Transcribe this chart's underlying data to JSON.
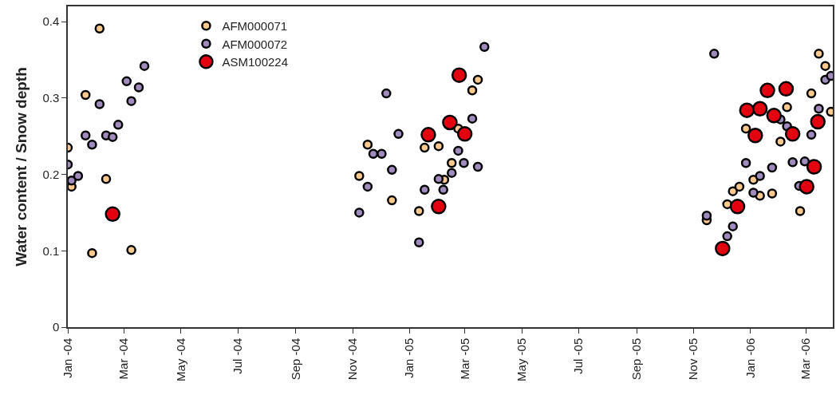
{
  "chart_data": {
    "type": "scatter",
    "ylabel": "Water content / Snow depth",
    "xlim": [
      "2004-01-01",
      "2006-03-30"
    ],
    "xticks": [
      {
        "value": "2004-01-01",
        "label": "Jan -04"
      },
      {
        "value": "2004-03-01",
        "label": "Mar -04"
      },
      {
        "value": "2004-05-01",
        "label": "May -04"
      },
      {
        "value": "2004-07-01",
        "label": "Jul -04"
      },
      {
        "value": "2004-09-01",
        "label": "Sep -04"
      },
      {
        "value": "2004-11-01",
        "label": "Nov -04"
      },
      {
        "value": "2005-01-01",
        "label": "Jan -05"
      },
      {
        "value": "2005-03-01",
        "label": "Mar -05"
      },
      {
        "value": "2005-05-01",
        "label": "May -05"
      },
      {
        "value": "2005-07-01",
        "label": "Jul -05"
      },
      {
        "value": "2005-09-01",
        "label": "Sep -05"
      },
      {
        "value": "2005-11-01",
        "label": "Nov -05"
      },
      {
        "value": "2006-01-01",
        "label": "Jan -06"
      },
      {
        "value": "2006-03-01",
        "label": "Mar -06"
      }
    ],
    "ylim": [
      0,
      0.42
    ],
    "yticks": [
      0,
      0.1,
      0.2,
      0.3,
      0.4
    ],
    "legend": "top left",
    "marker": "circle",
    "series": [
      {
        "name": "AFM000071",
        "color": "#fdc98c",
        "x": [
          "2004-01-01",
          "2004-01-05",
          "2004-01-12",
          "2004-01-20",
          "2004-02-04",
          "2004-01-27",
          "2004-02-11",
          "2004-03-09",
          "2004-11-17",
          "2004-11-08",
          "2004-12-13",
          "2005-01-11",
          "2005-01-17",
          "2005-02-01",
          "2005-02-07",
          "2005-02-15",
          "2005-02-22",
          "2005-03-09",
          "2005-03-15",
          "2005-11-15",
          "2005-12-07",
          "2005-12-13",
          "2005-12-20",
          "2006-01-04",
          "2006-01-11",
          "2006-01-24",
          "2005-12-27",
          "2006-02-09",
          "2006-02-02",
          "2006-03-07",
          "2006-03-15",
          "2006-03-22",
          "2006-03-28",
          "2006-02-23"
        ],
        "values": [
          0.235,
          0.184,
          null,
          0.304,
          0.391,
          0.097,
          0.194,
          0.101,
          0.239,
          0.198,
          0.166,
          0.152,
          0.235,
          0.237,
          0.193,
          0.215,
          0.26,
          0.31,
          0.324,
          0.14,
          0.161,
          0.178,
          0.184,
          0.193,
          0.172,
          0.175,
          0.26,
          0.288,
          0.243,
          0.306,
          0.358,
          0.342,
          0.282,
          0.152
        ]
      },
      {
        "name": "AFM000072",
        "color": "#a08bbf",
        "x": [
          "2004-01-01",
          "2004-01-05",
          "2004-01-12",
          "2004-01-20",
          "2004-01-27",
          "2004-02-04",
          "2004-02-11",
          "2004-02-18",
          "2004-02-24",
          "2004-03-04",
          "2004-03-09",
          "2004-03-17",
          "2004-03-23",
          "2005-03-22",
          "2004-12-07",
          "2005-03-09",
          "2004-12-20",
          "2005-02-22",
          "2004-11-23",
          "2004-12-02",
          "2005-02-28",
          "2005-03-15",
          "2004-12-13",
          "2005-02-15",
          "2005-02-01",
          "2004-11-17",
          "2005-01-17",
          "2005-02-06",
          "2004-11-08",
          "2005-01-11",
          "2005-11-23",
          "2005-11-15",
          "2005-12-13",
          "2005-12-07",
          "2005-12-27",
          "2006-01-11",
          "2006-01-04",
          "2006-01-24",
          "2006-02-15",
          "2006-02-28",
          "2006-03-07",
          "2006-03-15",
          "2006-03-22",
          "2006-03-28",
          "2006-02-02",
          "2006-02-09",
          "2006-02-22"
        ],
        "values": [
          0.213,
          0.192,
          0.198,
          0.251,
          0.239,
          0.292,
          0.251,
          0.249,
          0.265,
          0.322,
          0.296,
          0.314,
          0.342,
          0.367,
          0.306,
          0.273,
          0.253,
          0.231,
          0.227,
          0.227,
          0.215,
          0.21,
          0.206,
          0.202,
          0.194,
          0.184,
          0.18,
          0.18,
          0.15,
          0.111,
          0.358,
          0.146,
          0.132,
          0.119,
          0.215,
          0.198,
          0.176,
          0.209,
          0.216,
          0.217,
          0.252,
          0.286,
          0.324,
          0.329,
          0.272,
          0.263,
          0.185
        ]
      },
      {
        "name": "ASM100224",
        "color": "#e3000f",
        "x": [
          "2004-02-18",
          "2005-02-23",
          "2005-02-13",
          "2005-03-01",
          "2005-01-21",
          "2005-02-01",
          "2005-12-02",
          "2005-12-18",
          "2005-12-28",
          "2006-01-06",
          "2006-01-11",
          "2006-01-19",
          "2006-01-26",
          "2006-02-08",
          "2006-02-15",
          "2006-03-14",
          "2006-03-02",
          "2006-03-10"
        ],
        "values": [
          0.148,
          0.33,
          0.268,
          0.253,
          0.252,
          0.158,
          0.103,
          0.158,
          0.284,
          0.251,
          0.286,
          0.31,
          0.277,
          0.312,
          0.253,
          0.269,
          0.184,
          0.21
        ]
      }
    ]
  }
}
